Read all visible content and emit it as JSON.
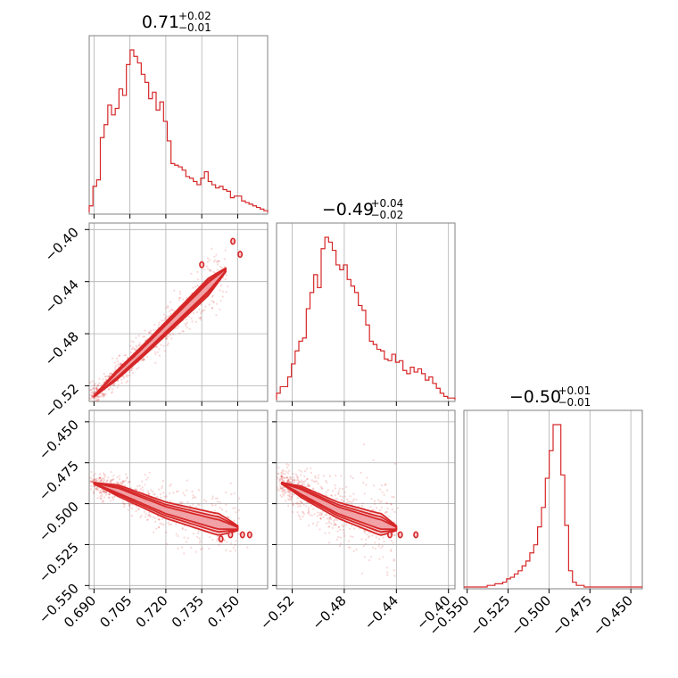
{
  "colors": {
    "accent": "#d62728",
    "fill_light": "#f7c9cb",
    "grid": "#b0b0b0",
    "frame": "#808080"
  },
  "chart_data": {
    "type": "corner",
    "grid": true,
    "parameters": [
      {
        "range": [
          0.688,
          0.7625
        ],
        "ticks": [
          0.69,
          0.705,
          0.72,
          0.735,
          0.75
        ],
        "tick_labels": [
          "0.690",
          "0.705",
          "0.720",
          "0.735",
          "0.750"
        ]
      },
      {
        "range": [
          -0.532,
          -0.395
        ],
        "ticks": [
          -0.52,
          -0.48,
          -0.44,
          -0.4
        ],
        "tick_labels": [
          "−0.52",
          "−0.48",
          "−0.44",
          "−0.40"
        ]
      },
      {
        "range": [
          -0.552,
          -0.443
        ],
        "ticks": [
          -0.55,
          -0.525,
          -0.5,
          -0.475,
          -0.45
        ],
        "tick_labels": [
          "−0.550",
          "−0.525",
          "−0.500",
          "−0.475",
          "−0.450"
        ]
      }
    ],
    "titles": [
      {
        "value": "0.71",
        "plus": "+0.02",
        "minus": "−0.01"
      },
      {
        "value": "−0.49",
        "plus": "+0.04",
        "minus": "−0.02"
      },
      {
        "value": "−0.50",
        "plus": "+0.01",
        "minus": "−0.01"
      }
    ],
    "histograms": [
      {
        "param": 0,
        "counts": [
          0.04,
          0.16,
          0.2,
          0.46,
          0.54,
          0.66,
          0.6,
          0.64,
          0.76,
          0.72,
          0.91,
          1.0,
          0.96,
          0.92,
          0.85,
          0.8,
          0.7,
          0.74,
          0.63,
          0.68,
          0.56,
          0.44,
          0.3,
          0.29,
          0.28,
          0.26,
          0.22,
          0.21,
          0.19,
          0.17,
          0.21,
          0.25,
          0.19,
          0.17,
          0.15,
          0.16,
          0.14,
          0.13,
          0.09,
          0.1,
          0.1,
          0.07,
          0.06,
          0.05,
          0.04,
          0.03,
          0.02,
          0.01
        ]
      },
      {
        "param": 1,
        "counts": [
          0.04,
          0.08,
          0.08,
          0.14,
          0.22,
          0.3,
          0.36,
          0.38,
          0.56,
          0.66,
          0.77,
          0.69,
          0.93,
          1.0,
          0.97,
          0.92,
          0.83,
          0.8,
          0.83,
          0.74,
          0.7,
          0.66,
          0.58,
          0.55,
          0.46,
          0.36,
          0.34,
          0.31,
          0.3,
          0.25,
          0.24,
          0.28,
          0.23,
          0.24,
          0.18,
          0.16,
          0.2,
          0.17,
          0.19,
          0.16,
          0.12,
          0.14,
          0.1,
          0.07,
          0.04,
          0.02,
          0.01,
          0.01
        ]
      },
      {
        "param": 2,
        "counts": [
          0,
          0,
          0,
          0,
          0,
          0,
          0.01,
          0.01,
          0.02,
          0.02,
          0.03,
          0.05,
          0.06,
          0.08,
          0.1,
          0.13,
          0.16,
          0.21,
          0.26,
          0.37,
          0.49,
          0.67,
          0.84,
          1.0,
          1.0,
          0.69,
          0.38,
          0.1,
          0.03,
          0.01,
          0.01,
          0,
          0,
          0,
          0,
          0,
          0,
          0,
          0,
          0,
          0,
          0,
          0,
          0,
          0,
          0
        ]
      }
    ],
    "joint": [
      {
        "x": 0,
        "y": 1,
        "ridge": [
          [
            0.69,
            -0.528
          ],
          [
            0.7,
            -0.511
          ],
          [
            0.71,
            -0.494
          ],
          [
            0.72,
            -0.476
          ],
          [
            0.73,
            -0.458
          ],
          [
            0.74,
            -0.44
          ],
          [
            0.745,
            -0.431
          ]
        ],
        "width": [
          0.006,
          0.0045,
          0.003
        ],
        "scatter_spread": 0.01,
        "islands": [
          [
            0.751,
            -0.419
          ],
          [
            0.735,
            -0.427
          ],
          [
            0.748,
            -0.409
          ]
        ]
      },
      {
        "x": 0,
        "y": 2,
        "ridge": [
          [
            0.69,
            -0.4875
          ],
          [
            0.7,
            -0.492
          ],
          [
            0.71,
            -0.498
          ],
          [
            0.72,
            -0.504
          ],
          [
            0.73,
            -0.508
          ],
          [
            0.74,
            -0.512
          ],
          [
            0.75,
            -0.515
          ]
        ],
        "width": [
          0.006,
          0.0042,
          0.0026
        ],
        "scatter_spread": 0.009,
        "islands": [
          [
            0.747,
            -0.519
          ],
          [
            0.752,
            -0.519
          ],
          [
            0.743,
            -0.5215
          ],
          [
            0.755,
            -0.519
          ]
        ]
      },
      {
        "x": 1,
        "y": 2,
        "ridge": [
          [
            -0.528,
            -0.4875
          ],
          [
            -0.515,
            -0.492
          ],
          [
            -0.5,
            -0.498
          ],
          [
            -0.485,
            -0.504
          ],
          [
            -0.47,
            -0.508
          ],
          [
            -0.455,
            -0.512
          ],
          [
            -0.44,
            -0.515
          ]
        ],
        "width": [
          0.006,
          0.0042,
          0.0026
        ],
        "scatter_spread": 0.013,
        "islands": [
          [
            -0.445,
            -0.519
          ],
          [
            -0.437,
            -0.519
          ],
          [
            -0.425,
            -0.519
          ]
        ]
      }
    ]
  }
}
